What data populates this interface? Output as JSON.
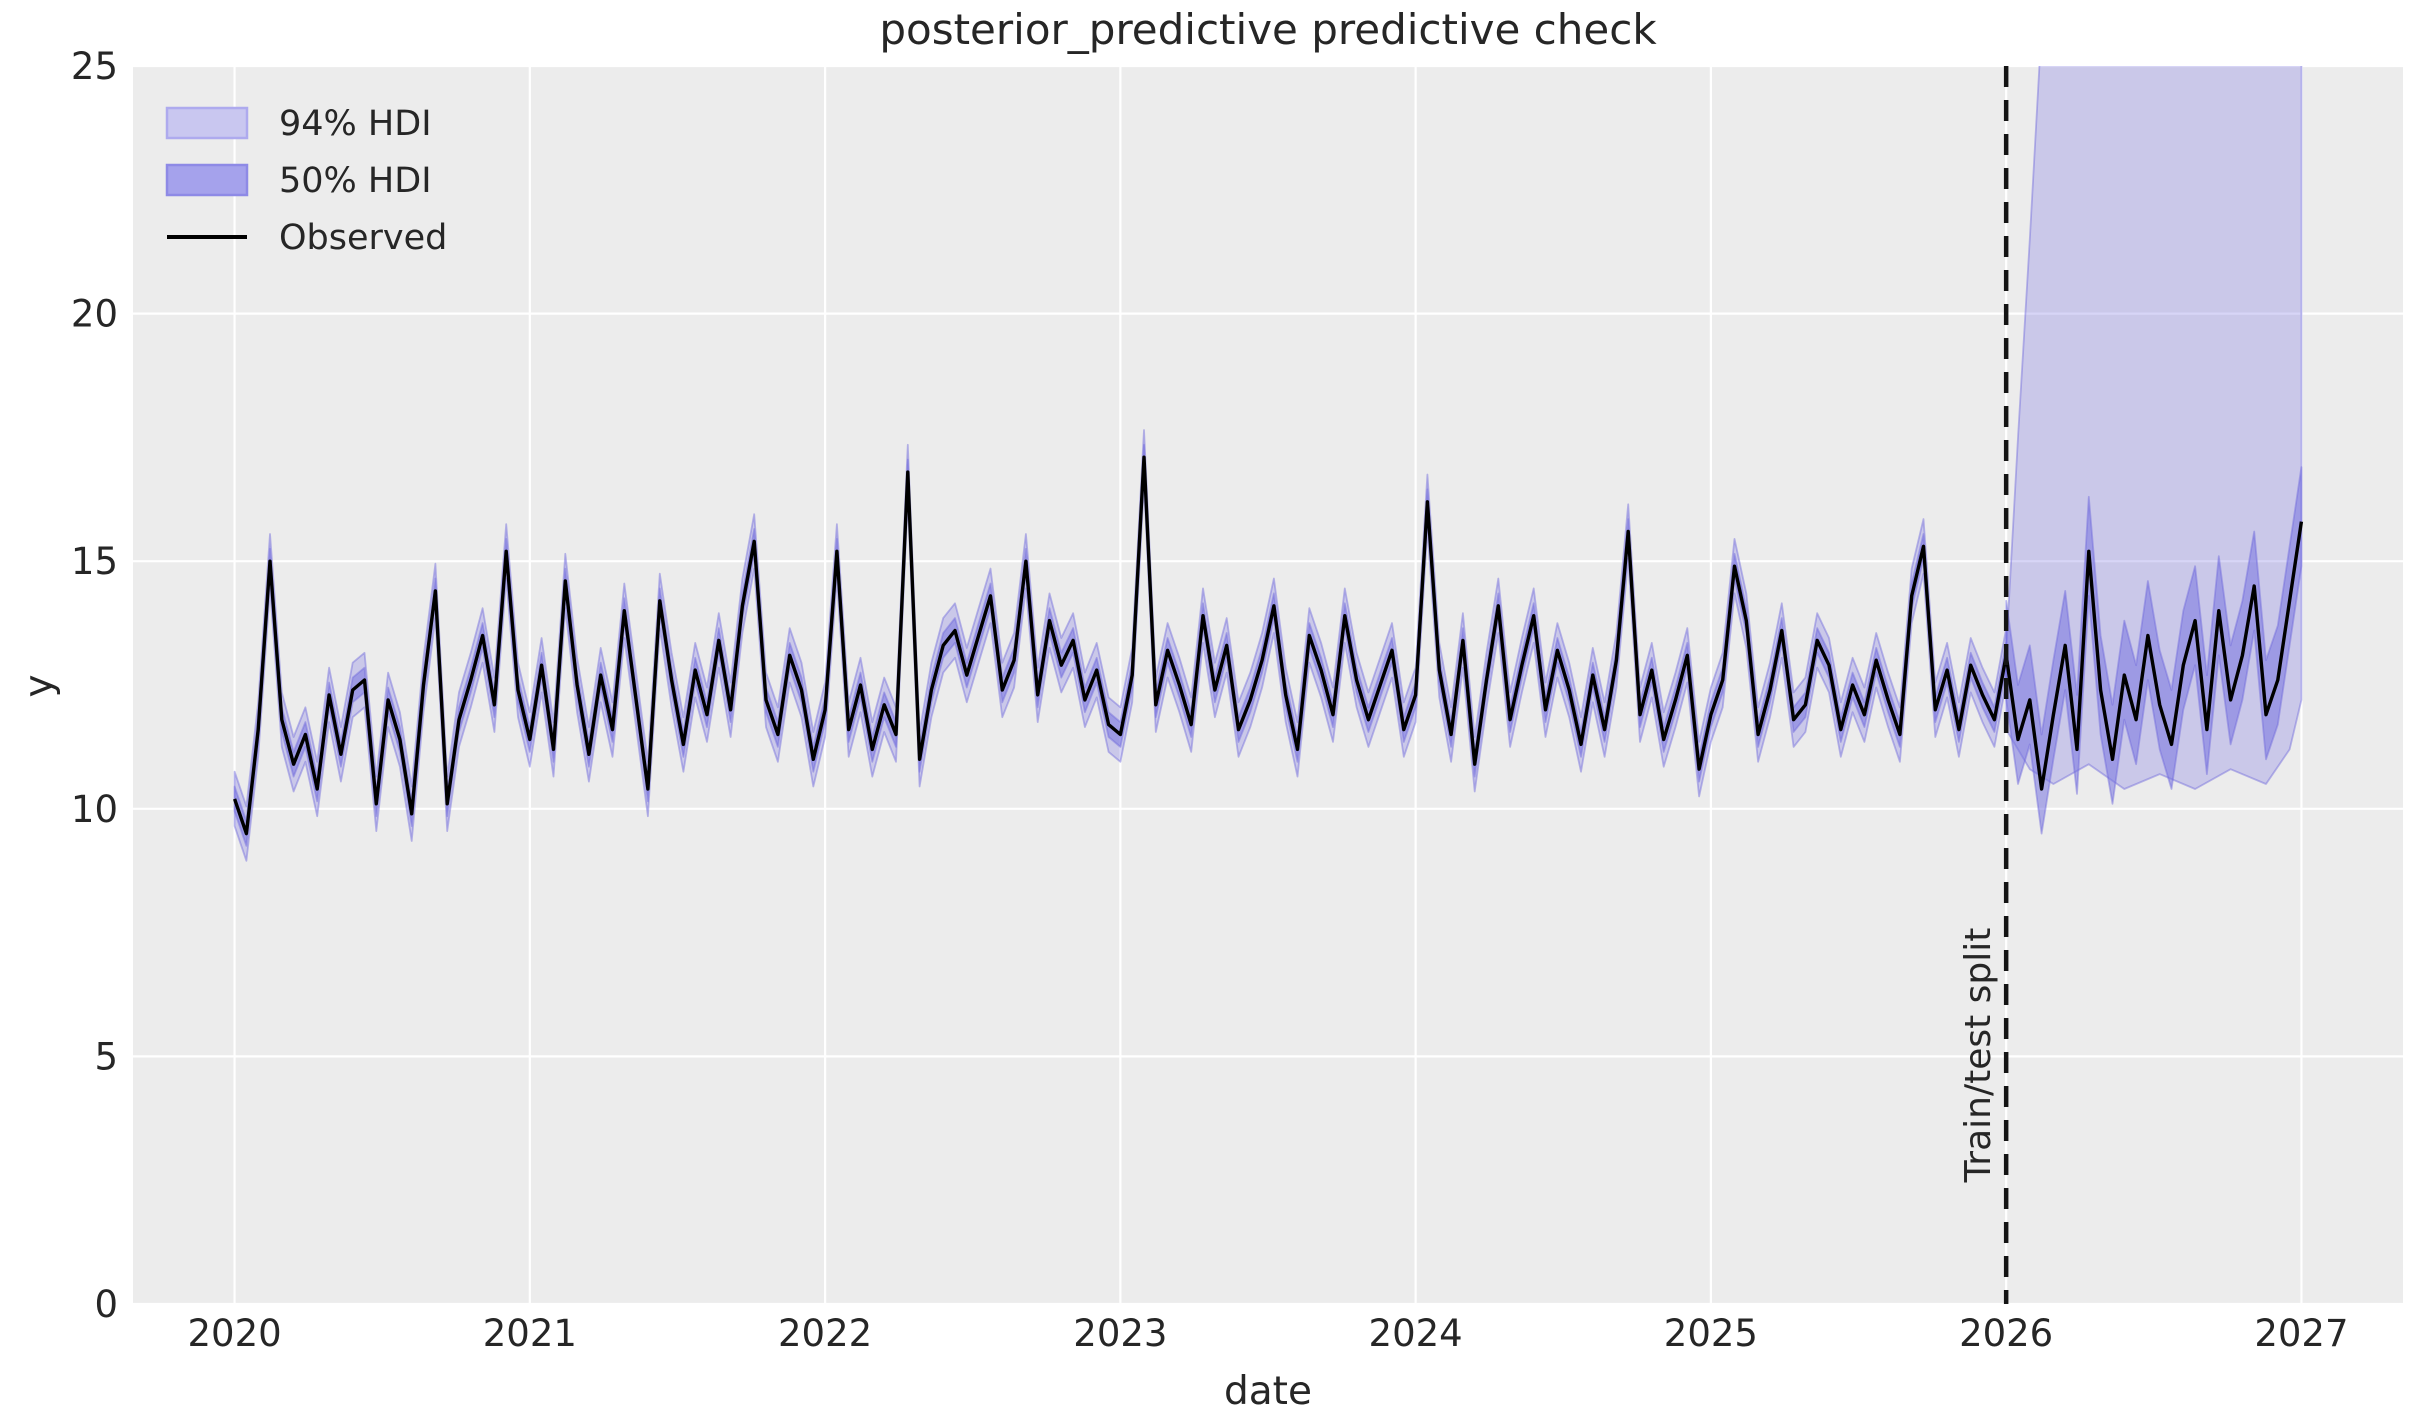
{
  "chart_data": {
    "type": "line",
    "title": "posterior_predictive predictive check",
    "xlabel": "date",
    "ylabel": "y",
    "xlim": [
      2019.656,
      2027.344
    ],
    "ylim": [
      0,
      25
    ],
    "x_ticks": [
      2020,
      2021,
      2022,
      2023,
      2024,
      2025,
      2026,
      2027
    ],
    "y_ticks": [
      0,
      5,
      10,
      15,
      20,
      25
    ],
    "grid": true,
    "legend_position": "upper-left",
    "legend": [
      {
        "label": "94% HDI",
        "type": "patch",
        "fill": "#c9c7f0",
        "edge": "#aeaaee"
      },
      {
        "label": "50% HDI",
        "type": "patch",
        "fill": "#a5a2ec",
        "edge": "#8e8ae6"
      },
      {
        "label": "Observed",
        "type": "line",
        "color": "#000000"
      }
    ],
    "split": {
      "x": 2026.0,
      "label": "Train/test split"
    },
    "colors": {
      "plot_bg": "#ececec",
      "grid": "#ffffff",
      "hdi_base": "#7974e0",
      "hdi94_fill": "rgba(121,116,224,0.30)",
      "hdi50_fill": "rgba(121,116,224,0.55)",
      "band_edge": "rgba(110,105,220,0.45)",
      "observed": "#000000",
      "split_line": "#141414",
      "text": "#262626"
    },
    "series": {
      "observed": [
        [
          2020.0,
          10.2
        ],
        [
          2020.04,
          9.5
        ],
        [
          2020.08,
          11.6
        ],
        [
          2020.12,
          15.0
        ],
        [
          2020.16,
          11.8
        ],
        [
          2020.2,
          10.9
        ],
        [
          2020.24,
          11.5
        ],
        [
          2020.28,
          10.4
        ],
        [
          2020.32,
          12.3
        ],
        [
          2020.36,
          11.1
        ],
        [
          2020.4,
          12.4
        ],
        [
          2020.44,
          12.6
        ],
        [
          2020.48,
          10.1
        ],
        [
          2020.52,
          12.2
        ],
        [
          2020.56,
          11.4
        ],
        [
          2020.6,
          9.9
        ],
        [
          2020.64,
          12.5
        ],
        [
          2020.68,
          14.4
        ],
        [
          2020.72,
          10.1
        ],
        [
          2020.76,
          11.8
        ],
        [
          2020.8,
          12.6
        ],
        [
          2020.84,
          13.5
        ],
        [
          2020.88,
          12.1
        ],
        [
          2020.92,
          15.2
        ],
        [
          2020.96,
          12.4
        ],
        [
          2021.0,
          11.4
        ],
        [
          2021.04,
          12.9
        ],
        [
          2021.08,
          11.2
        ],
        [
          2021.12,
          14.6
        ],
        [
          2021.16,
          12.5
        ],
        [
          2021.2,
          11.1
        ],
        [
          2021.24,
          12.7
        ],
        [
          2021.28,
          11.6
        ],
        [
          2021.32,
          14.0
        ],
        [
          2021.36,
          12.2
        ],
        [
          2021.4,
          10.4
        ],
        [
          2021.44,
          14.2
        ],
        [
          2021.48,
          12.6
        ],
        [
          2021.52,
          11.3
        ],
        [
          2021.56,
          12.8
        ],
        [
          2021.6,
          11.9
        ],
        [
          2021.64,
          13.4
        ],
        [
          2021.68,
          12.0
        ],
        [
          2021.72,
          14.1
        ],
        [
          2021.76,
          15.4
        ],
        [
          2021.8,
          12.2
        ],
        [
          2021.84,
          11.5
        ],
        [
          2021.88,
          13.1
        ],
        [
          2021.92,
          12.4
        ],
        [
          2021.96,
          11.0
        ],
        [
          2022.0,
          12.0
        ],
        [
          2022.04,
          15.2
        ],
        [
          2022.08,
          11.6
        ],
        [
          2022.12,
          12.5
        ],
        [
          2022.16,
          11.2
        ],
        [
          2022.2,
          12.1
        ],
        [
          2022.24,
          11.5
        ],
        [
          2022.28,
          16.8
        ],
        [
          2022.32,
          11.0
        ],
        [
          2022.36,
          12.4
        ],
        [
          2022.4,
          13.3
        ],
        [
          2022.44,
          13.6
        ],
        [
          2022.48,
          12.7
        ],
        [
          2022.52,
          13.5
        ],
        [
          2022.56,
          14.3
        ],
        [
          2022.6,
          12.4
        ],
        [
          2022.64,
          13.0
        ],
        [
          2022.68,
          15.0
        ],
        [
          2022.72,
          12.3
        ],
        [
          2022.76,
          13.8
        ],
        [
          2022.8,
          12.9
        ],
        [
          2022.84,
          13.4
        ],
        [
          2022.88,
          12.2
        ],
        [
          2022.92,
          12.8
        ],
        [
          2022.96,
          11.7
        ],
        [
          2023.0,
          11.5
        ],
        [
          2023.04,
          12.7
        ],
        [
          2023.08,
          17.1
        ],
        [
          2023.12,
          12.1
        ],
        [
          2023.16,
          13.2
        ],
        [
          2023.2,
          12.5
        ],
        [
          2023.24,
          11.7
        ],
        [
          2023.28,
          13.9
        ],
        [
          2023.32,
          12.4
        ],
        [
          2023.36,
          13.3
        ],
        [
          2023.4,
          11.6
        ],
        [
          2023.44,
          12.2
        ],
        [
          2023.48,
          13.0
        ],
        [
          2023.52,
          14.1
        ],
        [
          2023.56,
          12.3
        ],
        [
          2023.6,
          11.2
        ],
        [
          2023.64,
          13.5
        ],
        [
          2023.68,
          12.8
        ],
        [
          2023.72,
          11.9
        ],
        [
          2023.76,
          13.9
        ],
        [
          2023.8,
          12.6
        ],
        [
          2023.84,
          11.8
        ],
        [
          2023.88,
          12.5
        ],
        [
          2023.92,
          13.2
        ],
        [
          2023.96,
          11.6
        ],
        [
          2024.0,
          12.3
        ],
        [
          2024.04,
          16.2
        ],
        [
          2024.08,
          12.8
        ],
        [
          2024.12,
          11.5
        ],
        [
          2024.16,
          13.4
        ],
        [
          2024.2,
          10.9
        ],
        [
          2024.24,
          12.6
        ],
        [
          2024.28,
          14.1
        ],
        [
          2024.32,
          11.8
        ],
        [
          2024.36,
          12.9
        ],
        [
          2024.4,
          13.9
        ],
        [
          2024.44,
          12.0
        ],
        [
          2024.48,
          13.2
        ],
        [
          2024.52,
          12.4
        ],
        [
          2024.56,
          11.3
        ],
        [
          2024.6,
          12.7
        ],
        [
          2024.64,
          11.6
        ],
        [
          2024.68,
          13.0
        ],
        [
          2024.72,
          15.6
        ],
        [
          2024.76,
          11.9
        ],
        [
          2024.8,
          12.8
        ],
        [
          2024.84,
          11.4
        ],
        [
          2024.88,
          12.2
        ],
        [
          2024.92,
          13.1
        ],
        [
          2024.96,
          10.8
        ],
        [
          2025.0,
          11.9
        ],
        [
          2025.04,
          12.6
        ],
        [
          2025.08,
          14.9
        ],
        [
          2025.12,
          13.8
        ],
        [
          2025.16,
          11.5
        ],
        [
          2025.2,
          12.4
        ],
        [
          2025.24,
          13.6
        ],
        [
          2025.28,
          11.8
        ],
        [
          2025.32,
          12.1
        ],
        [
          2025.36,
          13.4
        ],
        [
          2025.4,
          12.9
        ],
        [
          2025.44,
          11.6
        ],
        [
          2025.48,
          12.5
        ],
        [
          2025.52,
          11.9
        ],
        [
          2025.56,
          13.0
        ],
        [
          2025.6,
          12.2
        ],
        [
          2025.64,
          11.5
        ],
        [
          2025.68,
          14.3
        ],
        [
          2025.72,
          15.3
        ],
        [
          2025.76,
          12.0
        ],
        [
          2025.8,
          12.8
        ],
        [
          2025.84,
          11.6
        ],
        [
          2025.88,
          12.9
        ],
        [
          2025.92,
          12.3
        ],
        [
          2025.96,
          11.8
        ],
        [
          2026.0,
          13.1
        ],
        [
          2026.04,
          11.4
        ],
        [
          2026.08,
          12.2
        ],
        [
          2026.12,
          10.4
        ],
        [
          2026.16,
          11.9
        ],
        [
          2026.2,
          13.3
        ],
        [
          2026.24,
          11.2
        ],
        [
          2026.28,
          15.2
        ],
        [
          2026.32,
          12.4
        ],
        [
          2026.36,
          11.0
        ],
        [
          2026.4,
          12.7
        ],
        [
          2026.44,
          11.8
        ],
        [
          2026.48,
          13.5
        ],
        [
          2026.52,
          12.1
        ],
        [
          2026.56,
          11.3
        ],
        [
          2026.6,
          12.9
        ],
        [
          2026.64,
          13.8
        ],
        [
          2026.68,
          11.6
        ],
        [
          2026.72,
          14.0
        ],
        [
          2026.76,
          12.2
        ],
        [
          2026.8,
          13.1
        ],
        [
          2026.84,
          14.5
        ],
        [
          2026.88,
          11.9
        ],
        [
          2026.92,
          12.6
        ],
        [
          2026.96,
          14.2
        ],
        [
          2027.0,
          15.8
        ]
      ],
      "hdi94_halfwidth_train": 0.55,
      "hdi50_halfwidth_train": 0.25,
      "hdi50_test_offsets": {
        "upper": 1.1,
        "lower": 0.9
      },
      "hdi94_test_upper": [
        [
          2026.0,
          13.2
        ],
        [
          2026.04,
          17.5
        ],
        [
          2026.08,
          21.5
        ],
        [
          2026.12,
          25.8
        ],
        [
          2026.18,
          28.0
        ],
        [
          2026.4,
          28.5
        ],
        [
          2026.6,
          28.5
        ],
        [
          2026.8,
          28.0
        ],
        [
          2026.92,
          27.2
        ],
        [
          2027.0,
          26.0
        ]
      ],
      "hdi94_test_lower": [
        [
          2026.0,
          11.6
        ],
        [
          2026.08,
          10.8
        ],
        [
          2026.16,
          10.5
        ],
        [
          2026.28,
          10.9
        ],
        [
          2026.4,
          10.4
        ],
        [
          2026.52,
          10.7
        ],
        [
          2026.64,
          10.4
        ],
        [
          2026.76,
          10.8
        ],
        [
          2026.88,
          10.5
        ],
        [
          2026.96,
          11.2
        ],
        [
          2027.0,
          12.2
        ]
      ]
    }
  }
}
